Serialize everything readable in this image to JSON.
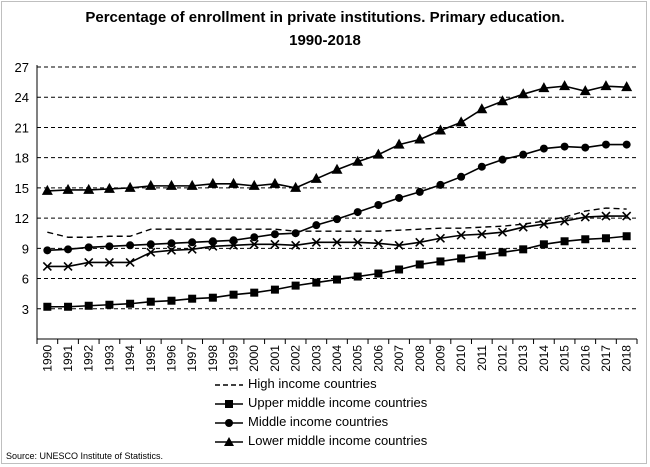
{
  "chart_data": {
    "type": "line",
    "title": "Percentage of enrollment in  private institutions.  Primary education.",
    "subtitle": "1990-2018",
    "x": [
      "1990",
      "1991",
      "1992",
      "1993",
      "1994",
      "1995",
      "1996",
      "1997",
      "1998",
      "1999",
      "2000",
      "2001",
      "2002",
      "2003",
      "2004",
      "2005",
      "2006",
      "2007",
      "2008",
      "2009",
      "2010",
      "2011",
      "2012",
      "2013",
      "2014",
      "2015",
      "2016",
      "2017",
      "2018"
    ],
    "yticks": [
      3,
      6,
      9,
      12,
      15,
      18,
      21,
      24,
      27
    ],
    "ylim": [
      0,
      27
    ],
    "grid": true,
    "legend_position": "bottom",
    "series": [
      {
        "name": "High income countries",
        "style": "dashed",
        "marker": "none",
        "values": [
          10.6,
          10.1,
          10.1,
          10.2,
          10.2,
          10.9,
          10.9,
          10.9,
          10.9,
          10.9,
          10.9,
          10.9,
          10.7,
          10.7,
          10.7,
          10.7,
          10.7,
          10.8,
          10.9,
          11.0,
          11.0,
          11.1,
          11.2,
          11.4,
          11.7,
          12.1,
          12.7,
          13.0,
          12.9
        ]
      },
      {
        "name": "Upper middle income countries",
        "style": "solid",
        "marker": "square",
        "values": [
          3.2,
          3.2,
          3.3,
          3.4,
          3.5,
          3.7,
          3.8,
          4.0,
          4.1,
          4.4,
          4.6,
          4.9,
          5.3,
          5.6,
          5.9,
          6.2,
          6.5,
          6.9,
          7.4,
          7.7,
          8.0,
          8.3,
          8.6,
          8.9,
          9.4,
          9.7,
          9.9,
          10.0,
          10.2
        ]
      },
      {
        "name": "Middle income countries",
        "style": "solid",
        "marker": "circle",
        "values": [
          8.8,
          8.9,
          9.1,
          9.2,
          9.3,
          9.4,
          9.5,
          9.6,
          9.7,
          9.8,
          10.1,
          10.4,
          10.5,
          11.3,
          11.9,
          12.6,
          13.3,
          14.0,
          14.6,
          15.3,
          16.1,
          17.1,
          17.8,
          18.3,
          18.9,
          19.1,
          19.0,
          19.3,
          19.3
        ]
      },
      {
        "name": "Lower middle income countries",
        "style": "solid",
        "marker": "triangle",
        "values": [
          14.7,
          14.8,
          14.8,
          14.9,
          15.0,
          15.2,
          15.2,
          15.2,
          15.4,
          15.4,
          15.2,
          15.4,
          15.0,
          15.9,
          16.8,
          17.6,
          18.3,
          19.3,
          19.8,
          20.7,
          21.5,
          22.8,
          23.6,
          24.3,
          24.9,
          25.1,
          24.6,
          25.1,
          25.0
        ]
      },
      {
        "name": "",
        "style": "solid",
        "marker": "x",
        "values": [
          7.2,
          7.2,
          7.6,
          7.6,
          7.6,
          8.6,
          8.8,
          8.9,
          9.2,
          9.3,
          9.4,
          9.4,
          9.3,
          9.6,
          9.6,
          9.6,
          9.5,
          9.3,
          9.6,
          10.0,
          10.3,
          10.4,
          10.6,
          11.1,
          11.4,
          11.7,
          12.1,
          12.2,
          12.2
        ]
      }
    ]
  },
  "legend": {
    "items": [
      "High income countries",
      "Upper middle income countries",
      "Middle income countries",
      "Lower middle income countries"
    ]
  },
  "source": "Source: UNESCO Institute of Statistics."
}
